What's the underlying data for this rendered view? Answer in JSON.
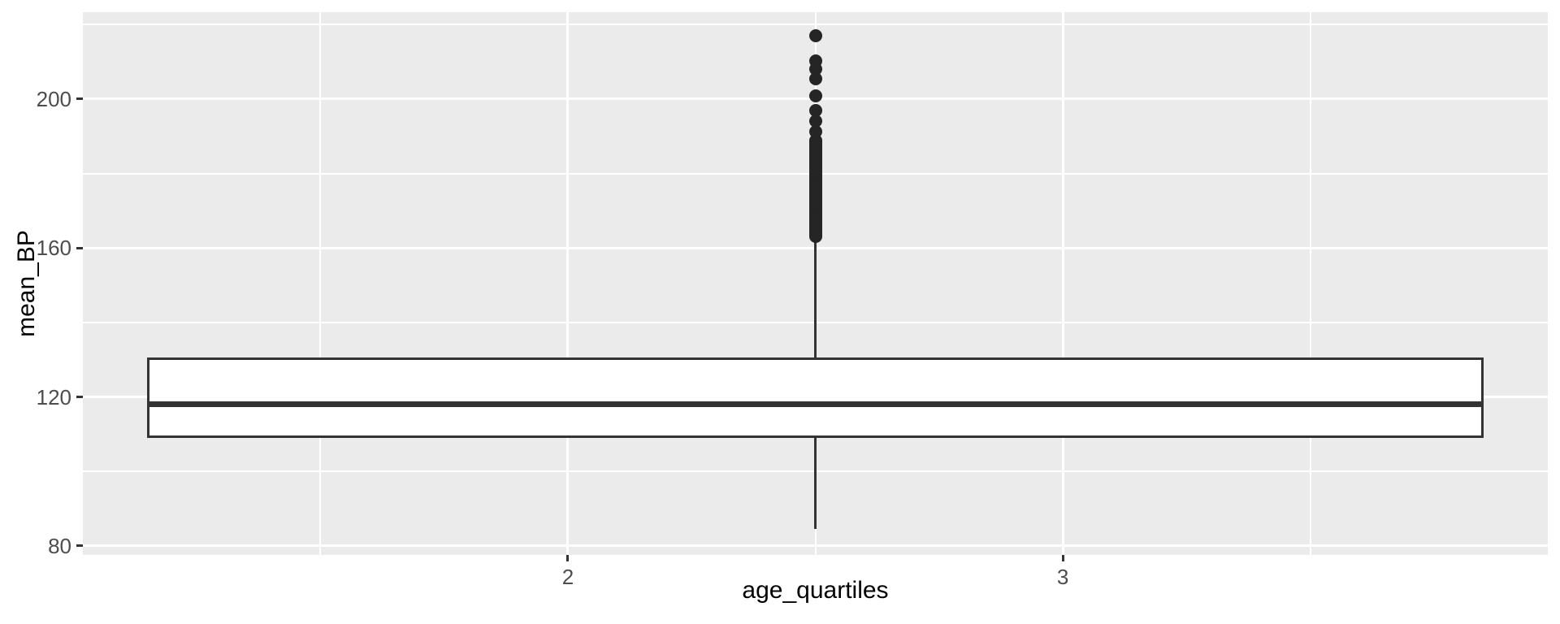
{
  "figure": {
    "background": "#ffffff",
    "panel_background": "#EBEBEB",
    "grid_color": "#ffffff",
    "box_stroke_color": "#333333",
    "box_fill_color": "#ffffff",
    "point_color": "#252525",
    "tick_label_color": "#4d4d4d",
    "axis_title_color": "#000000"
  },
  "chart_data": {
    "type": "boxplot",
    "title": "",
    "xlabel": "age_quartiles",
    "ylabel": "mean_BP",
    "grid": true,
    "legend": "none",
    "xlim": [
      1.02,
      3.98
    ],
    "ylim": [
      77.6,
      223.3
    ],
    "x_ticks": [
      {
        "value": 2,
        "label": "2"
      },
      {
        "value": 3,
        "label": "3"
      }
    ],
    "x_minor_values": [
      1.5,
      2.5,
      3.5
    ],
    "y_ticks": [
      {
        "value": 80,
        "label": "80"
      },
      {
        "value": 120,
        "label": "120"
      },
      {
        "value": 160,
        "label": "160"
      },
      {
        "value": 200,
        "label": "200"
      }
    ],
    "y_minor_values": [
      100,
      140,
      180,
      220
    ],
    "series": [
      {
        "name": "mean_BP",
        "x_center": 2.5,
        "box_left": 1.15,
        "box_right": 3.85,
        "q1": 109,
        "median": 118,
        "q3": 130.5,
        "whisker_low": 84.5,
        "whisker_high": 163,
        "outliers": [
          217,
          210.3,
          208,
          205.5,
          200.8,
          197,
          194,
          191.3,
          188.8,
          188.3,
          187.7,
          187.2,
          186.6,
          186.1,
          185.5,
          185.0,
          184.4,
          183.9,
          183.3,
          182.8,
          182.2,
          181.7,
          181.1,
          180.6,
          180.0,
          179.5,
          178.9,
          178.4,
          177.8,
          177.3,
          176.7,
          176.2,
          175.6,
          175.1,
          174.5,
          174.0,
          173.4,
          172.9,
          172.3,
          171.8,
          171.2,
          170.7,
          170.1,
          169.6,
          169.0,
          168.5,
          167.9,
          167.4,
          166.8,
          166.3,
          165.7,
          165.2,
          164.6,
          164.1,
          163.5,
          163.0
        ]
      }
    ]
  }
}
